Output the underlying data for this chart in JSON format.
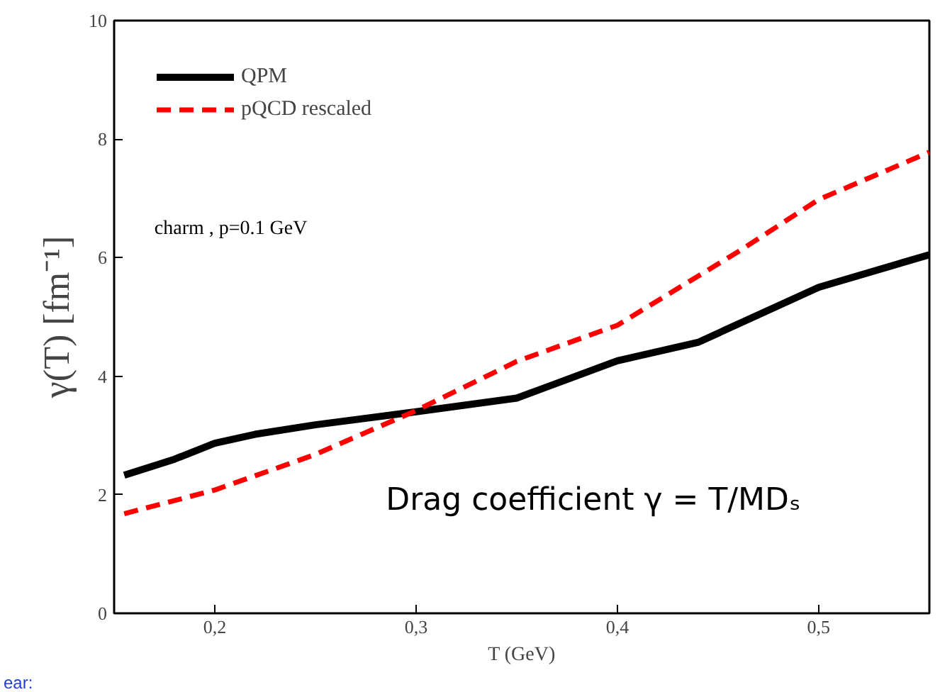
{
  "chart_data": {
    "type": "line",
    "xlabel": "T (GeV)",
    "ylabel": "γ(T) [fm⁻¹]",
    "xlim": [
      0.15,
      0.555
    ],
    "ylim": [
      0,
      10
    ],
    "xticks": [
      {
        "value": 0.2,
        "label": "0,2"
      },
      {
        "value": 0.3,
        "label": "0,3"
      },
      {
        "value": 0.4,
        "label": "0,4"
      },
      {
        "value": 0.5,
        "label": "0,5"
      }
    ],
    "yticks": [
      0,
      2,
      4,
      6,
      8,
      10
    ],
    "legend": "top left",
    "grid": false,
    "series": [
      {
        "name": "QPM",
        "color": "#000000",
        "line_style": "solid",
        "x": [
          0.155,
          0.18,
          0.2,
          0.22,
          0.25,
          0.3,
          0.35,
          0.4,
          0.44,
          0.5,
          0.555
        ],
        "values": [
          2.33,
          2.6,
          2.87,
          3.02,
          3.18,
          3.4,
          3.63,
          4.26,
          4.57,
          5.5,
          6.05
        ]
      },
      {
        "name": "pQCD rescaled",
        "color": "#ff0000",
        "line_style": "dashed",
        "x": [
          0.155,
          0.2,
          0.25,
          0.3,
          0.35,
          0.4,
          0.46,
          0.5,
          0.555
        ],
        "values": [
          1.68,
          2.08,
          2.68,
          3.42,
          4.25,
          4.86,
          6.1,
          6.98,
          7.78
        ]
      }
    ],
    "annotations": [
      "charm , p=0.1 GeV",
      "Drag coefficient γ = T/MDₛ",
      "ear:"
    ]
  }
}
